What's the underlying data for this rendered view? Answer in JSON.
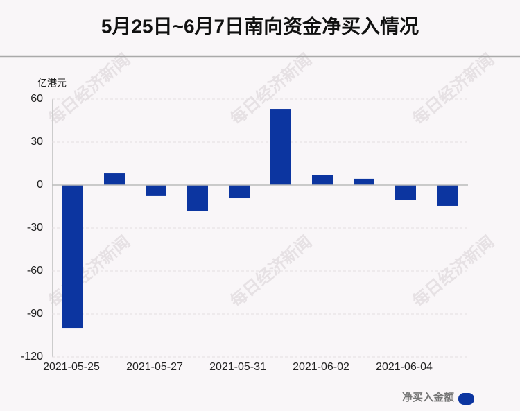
{
  "chart_data": {
    "type": "bar",
    "title": "5月25日~6月7日南向资金净买入情况",
    "y_axis_label": "亿港元",
    "watermark": "每日经济新闻",
    "categories": [
      "2021-05-25",
      null,
      "2021-05-27",
      null,
      "2021-05-31",
      null,
      "2021-06-02",
      null,
      "2021-06-04",
      null
    ],
    "series": [
      {
        "name": "净买入金额",
        "color": "#0c35a0",
        "values": [
          -99.7,
          8.2,
          -7.7,
          -17.9,
          -9.2,
          53.2,
          6.8,
          4.4,
          -10.6,
          -14.5
        ]
      }
    ],
    "ylim": [
      -120,
      60
    ],
    "yticks": [
      -120,
      -90,
      -60,
      -30,
      0,
      30,
      60
    ],
    "grid": true,
    "legend": "bottom-right"
  }
}
